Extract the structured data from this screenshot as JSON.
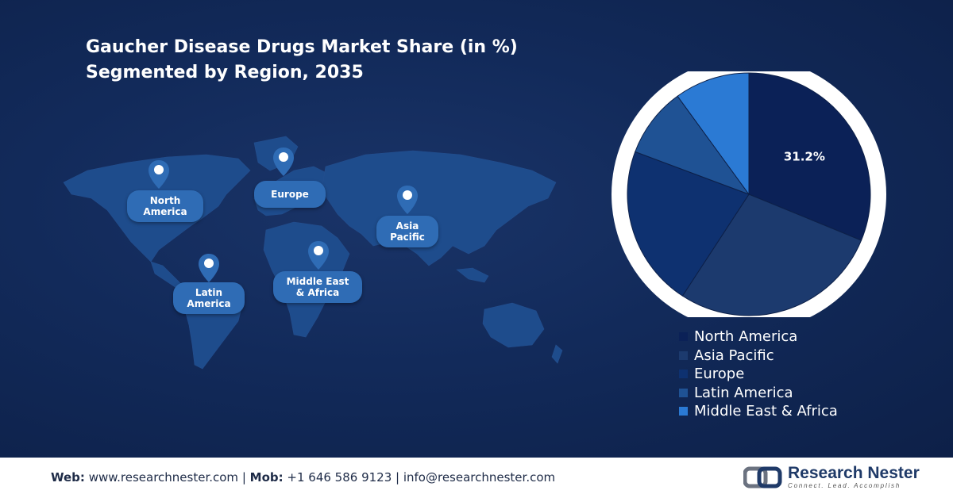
{
  "title_line1": "Gaucher Disease Drugs Market Share (in %)",
  "title_line2": "Segmented by Region, 2035",
  "map_regions": [
    {
      "line1": "North",
      "line2": "America"
    },
    {
      "line1": "Europe",
      "line2": ""
    },
    {
      "line1": "Asia",
      "line2": "Pacific"
    },
    {
      "line1": "Latin",
      "line2": "America"
    },
    {
      "line1": "Middle East",
      "line2": "& Africa"
    }
  ],
  "chart_data": {
    "type": "pie",
    "slices": [
      {
        "label": "North America",
        "value": 31.2,
        "color": "#0b2157",
        "data_label": "31.2%"
      },
      {
        "label": "Asia Pacific",
        "value": 28.0,
        "color": "#1c3a6e",
        "data_label": ""
      },
      {
        "label": "Europe",
        "value": 21.5,
        "color": "#0e3170",
        "data_label": ""
      },
      {
        "label": "Latin America",
        "value": 9.3,
        "color": "#1f5294",
        "data_label": ""
      },
      {
        "label": "Middle East & Africa",
        "value": 10.0,
        "color": "#2b7ad4",
        "data_label": ""
      }
    ],
    "start_angle_deg": 0,
    "direction": "clockwise",
    "legend_position": "bottom-right"
  },
  "footer": {
    "web_label": "Web:",
    "web_value": "www.researchnester.com",
    "sep1": " | ",
    "mob_label": "Mob:",
    "mob_value": "+1 646 586 9123",
    "sep2": " | ",
    "email": "info@researchnester.com"
  },
  "logo": {
    "name": "Research Nester",
    "tagline": "Connect. Lead. Accomplish"
  }
}
